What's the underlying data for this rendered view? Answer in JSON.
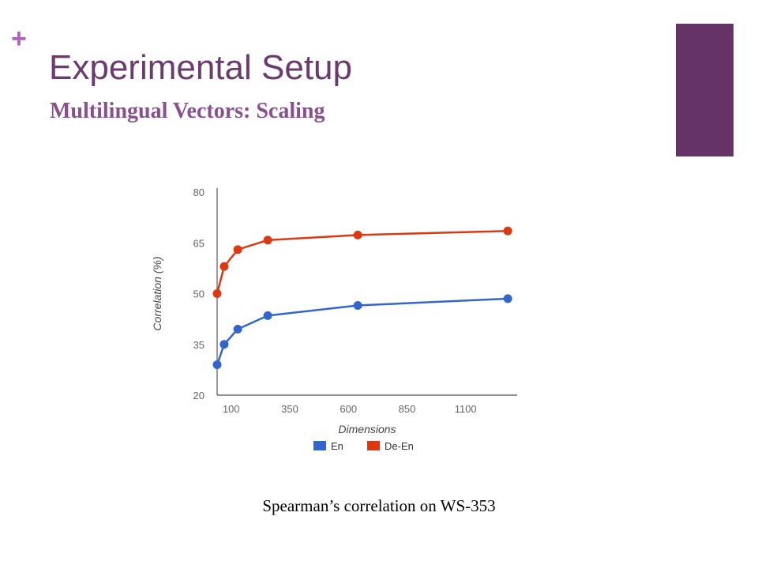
{
  "slide": {
    "plus_symbol": "+",
    "title": "Experimental Setup",
    "subtitle": "Multilingual Vectors: Scaling",
    "caption": "Spearman’s correlation on WS-353",
    "accent_color": "#663366"
  },
  "chart_data": {
    "type": "line",
    "title": "",
    "xlabel": "Dimensions",
    "ylabel": "Correlation (%)",
    "xlim": [
      40,
      1320
    ],
    "ylim": [
      20,
      80
    ],
    "xticks": [
      100,
      350,
      600,
      850,
      1100
    ],
    "yticks": [
      20,
      35,
      50,
      65,
      80
    ],
    "grid": false,
    "legend_position": "bottom",
    "series": [
      {
        "name": "En",
        "color": "#3366cc",
        "x": [
          40,
          70,
          128,
          256,
          640,
          1280
        ],
        "y": [
          29,
          35,
          39.5,
          43.5,
          46.5,
          48.5
        ]
      },
      {
        "name": "De-En",
        "color": "#dc3912",
        "x": [
          40,
          70,
          128,
          256,
          640,
          1280
        ],
        "y": [
          50,
          58,
          63,
          65.8,
          67.3,
          68.5
        ]
      }
    ]
  }
}
